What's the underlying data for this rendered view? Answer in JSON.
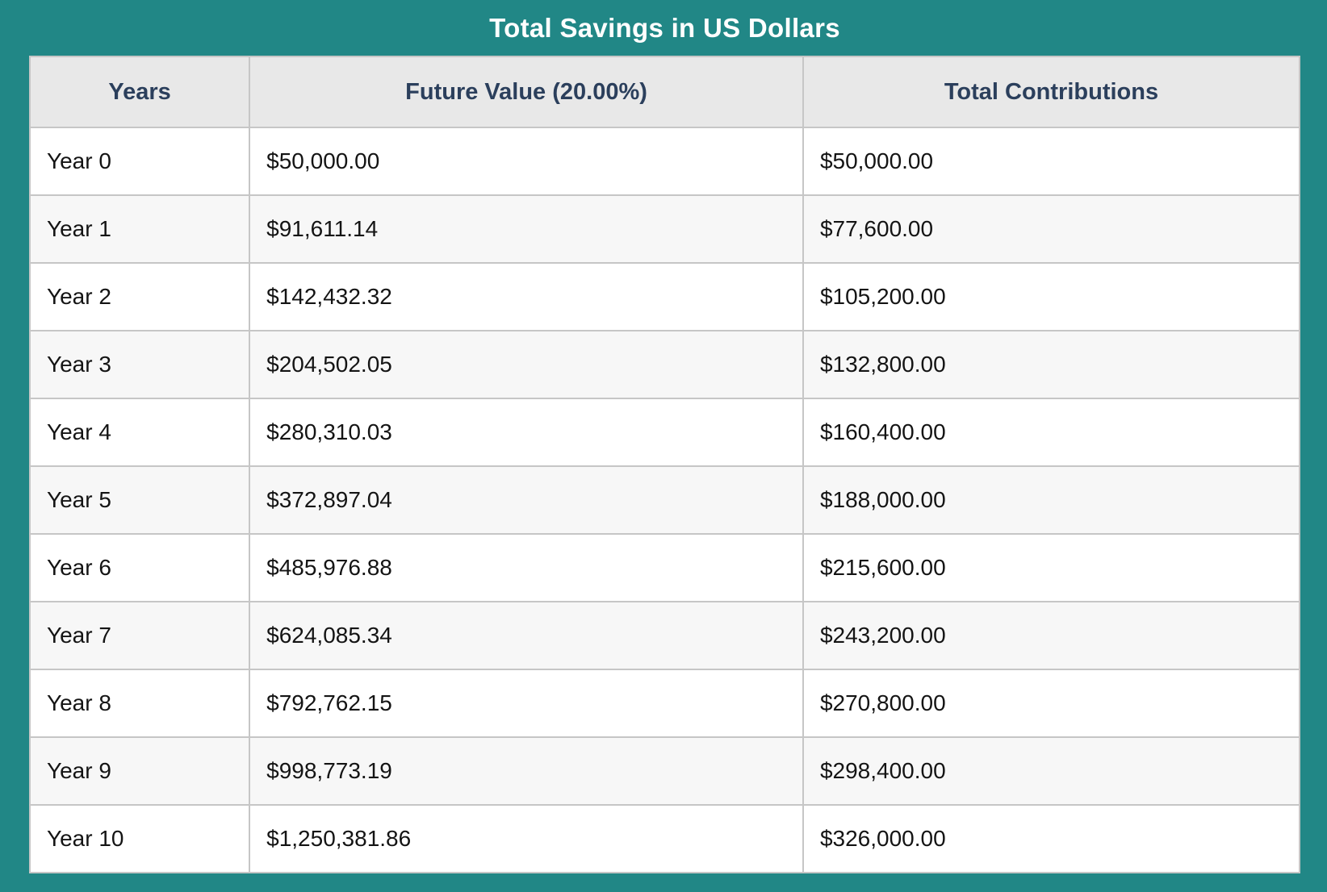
{
  "title": "Total Savings in US Dollars",
  "colors": {
    "frame_teal": "#218786",
    "header_bg": "#e8e8e8",
    "header_text": "#2b3f5c",
    "row_stripe": "#f7f7f7",
    "cell_border": "#c6c6c6",
    "title_text": "#ffffff",
    "body_text": "#141414"
  },
  "table": {
    "columns": [
      "Years",
      "Future Value (20.00%)",
      "Total Contributions"
    ],
    "rows": [
      [
        "Year 0",
        "$50,000.00",
        "$50,000.00"
      ],
      [
        "Year 1",
        "$91,611.14",
        "$77,600.00"
      ],
      [
        "Year 2",
        "$142,432.32",
        "$105,200.00"
      ],
      [
        "Year 3",
        "$204,502.05",
        "$132,800.00"
      ],
      [
        "Year 4",
        "$280,310.03",
        "$160,400.00"
      ],
      [
        "Year 5",
        "$372,897.04",
        "$188,000.00"
      ],
      [
        "Year 6",
        "$485,976.88",
        "$215,600.00"
      ],
      [
        "Year 7",
        "$624,085.34",
        "$243,200.00"
      ],
      [
        "Year 8",
        "$792,762.15",
        "$270,800.00"
      ],
      [
        "Year 9",
        "$998,773.19",
        "$298,400.00"
      ],
      [
        "Year 10",
        "$1,250,381.86",
        "$326,000.00"
      ]
    ]
  },
  "chart_data": {
    "type": "table",
    "title": "Total Savings in US Dollars",
    "columns": [
      "Years",
      "Future Value (20.00%)",
      "Total Contributions"
    ],
    "interest_rate_label": "20.00%",
    "years": [
      0,
      1,
      2,
      3,
      4,
      5,
      6,
      7,
      8,
      9,
      10
    ],
    "series": [
      {
        "name": "Future Value (20.00%)",
        "values": [
          50000.0,
          91611.14,
          142432.32,
          204502.05,
          280310.03,
          372897.04,
          485976.88,
          624085.34,
          792762.15,
          998773.19,
          1250381.86
        ]
      },
      {
        "name": "Total Contributions",
        "values": [
          50000.0,
          77600.0,
          105200.0,
          132800.0,
          160400.0,
          188000.0,
          215600.0,
          243200.0,
          270800.0,
          298400.0,
          326000.0
        ]
      }
    ]
  }
}
